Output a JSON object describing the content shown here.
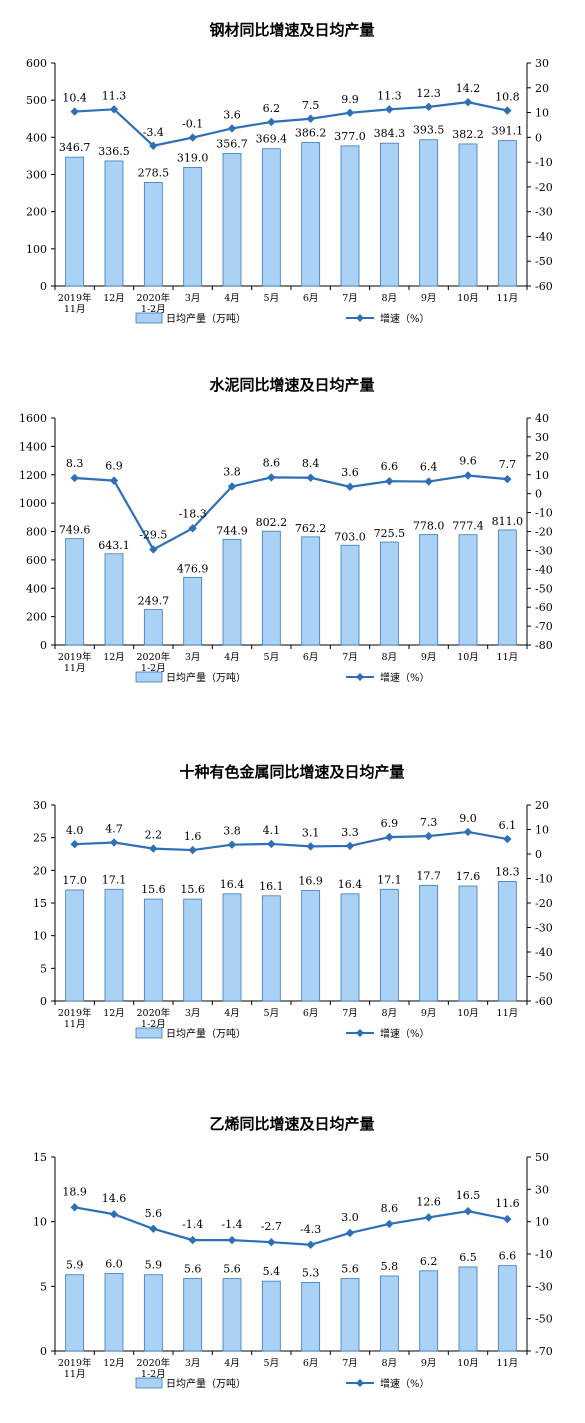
{
  "colors": {
    "bar": "#a9d2f5",
    "bar_stroke": "#3a79c2",
    "line": "#2e6fb7",
    "axis": "#000000"
  },
  "legend": {
    "bar_label": "日均产量（万吨）",
    "line_label": "增速（%）"
  },
  "chart_data": [
    {
      "type": "bar+line",
      "title": "钢材同比增速及日均产量",
      "categories": [
        [
          "2019年",
          "11月"
        ],
        [
          "12月"
        ],
        [
          "2020年",
          "1-2月"
        ],
        [
          "3月"
        ],
        [
          "4月"
        ],
        [
          "5月"
        ],
        [
          "6月"
        ],
        [
          "7月"
        ],
        [
          "8月"
        ],
        [
          "9月"
        ],
        [
          "10月"
        ],
        [
          "11月"
        ]
      ],
      "series": [
        {
          "name": "日均产量（万吨）",
          "kind": "bar",
          "axis": "left",
          "values": [
            346.7,
            336.5,
            278.5,
            319.0,
            356.7,
            369.4,
            386.2,
            377.0,
            384.3,
            393.5,
            382.2,
            391.1
          ],
          "labels": [
            "346.7",
            "336.5",
            "278.5",
            "319.0",
            "356.7",
            "369.4",
            "386.2",
            "377.0",
            "384.3",
            "393.5",
            "382.2",
            "391.1"
          ]
        },
        {
          "name": "增速（%）",
          "kind": "line",
          "axis": "right",
          "values": [
            10.4,
            11.3,
            -3.4,
            -0.1,
            3.6,
            6.2,
            7.5,
            9.9,
            11.3,
            12.3,
            14.2,
            10.8
          ],
          "labels": [
            "10.4",
            "11.3",
            "-3.4",
            "-0.1",
            "3.6",
            "6.2",
            "7.5",
            "9.9",
            "11.3",
            "12.3",
            "14.2",
            "10.8"
          ]
        }
      ],
      "left_axis": {
        "min": 0,
        "max": 600,
        "step": 100,
        "ticks": [
          "0",
          "100",
          "200",
          "300",
          "400",
          "500",
          "600"
        ]
      },
      "right_axis": {
        "min": -60,
        "max": 30,
        "step": 10,
        "ticks": [
          "-60",
          "-50",
          "-40",
          "-30",
          "-20",
          "-10",
          "0",
          "10",
          "20",
          "30"
        ]
      },
      "grid": false,
      "legend_position": "bottom"
    },
    {
      "type": "bar+line",
      "title": "水泥同比增速及日均产量",
      "categories": [
        [
          "2019年",
          "11月"
        ],
        [
          "12月"
        ],
        [
          "2020年",
          "1-2月"
        ],
        [
          "3月"
        ],
        [
          "4月"
        ],
        [
          "5月"
        ],
        [
          "6月"
        ],
        [
          "7月"
        ],
        [
          "8月"
        ],
        [
          "9月"
        ],
        [
          "10月"
        ],
        [
          "11月"
        ]
      ],
      "series": [
        {
          "name": "日均产量（万吨）",
          "kind": "bar",
          "axis": "left",
          "values": [
            749.6,
            643.1,
            249.7,
            476.9,
            744.9,
            802.2,
            762.2,
            703.0,
            725.5,
            778.0,
            777.4,
            811.0
          ],
          "labels": [
            "749.6",
            "643.1",
            "249.7",
            "476.9",
            "744.9",
            "802.2",
            "762.2",
            "703.0",
            "725.5",
            "778.0",
            "777.4",
            "811.0"
          ]
        },
        {
          "name": "增速（%）",
          "kind": "line",
          "axis": "right",
          "values": [
            8.3,
            6.9,
            -29.5,
            -18.3,
            3.8,
            8.6,
            8.4,
            3.6,
            6.6,
            6.4,
            9.6,
            7.7
          ],
          "labels": [
            "8.3",
            "6.9",
            "-29.5",
            "-18.3",
            "3.8",
            "8.6",
            "8.4",
            "3.6",
            "6.6",
            "6.4",
            "9.6",
            "7.7"
          ]
        }
      ],
      "left_axis": {
        "min": 0,
        "max": 1600,
        "step": 200,
        "ticks": [
          "0",
          "200",
          "400",
          "600",
          "800",
          "1000",
          "1200",
          "1400",
          "1600"
        ]
      },
      "right_axis": {
        "min": -80,
        "max": 40,
        "step": 10,
        "ticks": [
          "-80",
          "-70",
          "-60",
          "-50",
          "-40",
          "-30",
          "-20",
          "-10",
          "0",
          "10",
          "20",
          "30",
          "40"
        ]
      },
      "grid": false,
      "legend_position": "bottom"
    },
    {
      "type": "bar+line",
      "title": "十种有色金属同比增速及日均产量",
      "categories": [
        [
          "2019年",
          "11月"
        ],
        [
          "12月"
        ],
        [
          "2020年",
          "1-2月"
        ],
        [
          "3月"
        ],
        [
          "4月"
        ],
        [
          "5月"
        ],
        [
          "6月"
        ],
        [
          "7月"
        ],
        [
          "8月"
        ],
        [
          "9月"
        ],
        [
          "10月"
        ],
        [
          "11月"
        ]
      ],
      "series": [
        {
          "name": "日均产量（万吨）",
          "kind": "bar",
          "axis": "left",
          "values": [
            17.0,
            17.1,
            15.6,
            15.6,
            16.4,
            16.1,
            16.9,
            16.4,
            17.1,
            17.7,
            17.6,
            18.3
          ],
          "labels": [
            "17.0",
            "17.1",
            "15.6",
            "15.6",
            "16.4",
            "16.1",
            "16.9",
            "16.4",
            "17.1",
            "17.7",
            "17.6",
            "18.3"
          ]
        },
        {
          "name": "增速（%）",
          "kind": "line",
          "axis": "right",
          "values": [
            4.0,
            4.7,
            2.2,
            1.6,
            3.8,
            4.1,
            3.1,
            3.3,
            6.9,
            7.3,
            9.0,
            6.1
          ],
          "labels": [
            "4.0",
            "4.7",
            "2.2",
            "1.6",
            "3.8",
            "4.1",
            "3.1",
            "3.3",
            "6.9",
            "7.3",
            "9.0",
            "6.1"
          ]
        }
      ],
      "left_axis": {
        "min": 0,
        "max": 30,
        "step": 5,
        "ticks": [
          "0",
          "5",
          "10",
          "15",
          "20",
          "25",
          "30"
        ]
      },
      "right_axis": {
        "min": -60,
        "max": 20,
        "step": 10,
        "ticks": [
          "-60",
          "-50",
          "-40",
          "-30",
          "-20",
          "-10",
          "0",
          "10",
          "20"
        ]
      },
      "grid": false,
      "legend_position": "bottom"
    },
    {
      "type": "bar+line",
      "title": "乙烯同比增速及日均产量",
      "categories": [
        [
          "2019年",
          "11月"
        ],
        [
          "12月"
        ],
        [
          "2020年",
          "1-2月"
        ],
        [
          "3月"
        ],
        [
          "4月"
        ],
        [
          "5月"
        ],
        [
          "6月"
        ],
        [
          "7月"
        ],
        [
          "8月"
        ],
        [
          "9月"
        ],
        [
          "10月"
        ],
        [
          "11月"
        ]
      ],
      "series": [
        {
          "name": "日均产量（万吨）",
          "kind": "bar",
          "axis": "left",
          "values": [
            5.9,
            6.0,
            5.9,
            5.6,
            5.6,
            5.4,
            5.3,
            5.6,
            5.8,
            6.2,
            6.5,
            6.6
          ],
          "labels": [
            "5.9",
            "6.0",
            "5.9",
            "5.6",
            "5.6",
            "5.4",
            "5.3",
            "5.6",
            "5.8",
            "6.2",
            "6.5",
            "6.6"
          ]
        },
        {
          "name": "增速（%）",
          "kind": "line",
          "axis": "right",
          "values": [
            18.9,
            14.6,
            5.6,
            -1.4,
            -1.4,
            -2.7,
            -4.3,
            3.0,
            8.6,
            12.6,
            16.5,
            11.6
          ],
          "labels": [
            "18.9",
            "14.6",
            "5.6",
            "-1.4",
            "-1.4",
            "-2.7",
            "-4.3",
            "3.0",
            "8.6",
            "12.6",
            "16.5",
            "11.6"
          ]
        }
      ],
      "left_axis": {
        "min": 0,
        "max": 15,
        "step": 5,
        "ticks": [
          "0",
          "5",
          "10",
          "15"
        ]
      },
      "right_axis": {
        "min": -70,
        "max": 50,
        "step": 20,
        "ticks": [
          "-70",
          "-50",
          "-30",
          "-10",
          "10",
          "30",
          "50"
        ]
      },
      "grid": false,
      "legend_position": "bottom"
    }
  ]
}
